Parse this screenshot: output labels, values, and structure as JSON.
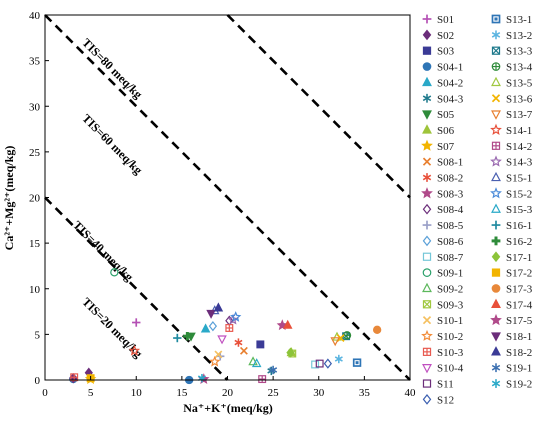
{
  "chart_data": {
    "type": "scatter",
    "xlabel": "Na⁺+K⁺(meq/kg)",
    "ylabel": "Ca²⁺+Mg²⁺(meq/kg)",
    "xlim": [
      0,
      40
    ],
    "ylim": [
      0,
      40
    ],
    "xticks": [
      0,
      5,
      10,
      15,
      20,
      25,
      30,
      35,
      40
    ],
    "yticks": [
      0,
      5,
      10,
      15,
      20,
      25,
      30,
      35,
      40
    ],
    "grid": false,
    "legend_placement": "right",
    "tis_lines": [
      {
        "label": "TIS=20 meq/kg",
        "total": 20
      },
      {
        "label": "TIS=40 meq/kg",
        "total": 40
      },
      {
        "label": "TIS=60 meq/kg",
        "total": 60
      },
      {
        "label": "TIS=80 meq/kg",
        "total": 80
      }
    ],
    "series": [
      {
        "name": "S01",
        "marker": "plus",
        "color": "#b450b4",
        "x": 10.0,
        "y": 6.3
      },
      {
        "name": "S02",
        "marker": "diamond",
        "color": "#6b2d7a",
        "x": 4.8,
        "y": 0.8
      },
      {
        "name": "S03",
        "marker": "square",
        "color": "#3b3b96",
        "x": 23.6,
        "y": 3.9
      },
      {
        "name": "S04-1",
        "marker": "circle",
        "color": "#2e75b6",
        "x": 15.8,
        "y": 0.0
      },
      {
        "name": "S04-2",
        "marker": "triangle",
        "color": "#2aa9c8",
        "x": 17.6,
        "y": 5.6
      },
      {
        "name": "S04-3",
        "marker": "asterisk",
        "color": "#1f7a8c",
        "x": 24.8,
        "y": 1.0
      },
      {
        "name": "S05",
        "marker": "triangle-down",
        "color": "#2e8b3a",
        "x": 16.0,
        "y": 4.8
      },
      {
        "name": "S06",
        "marker": "triangle",
        "color": "#9ec43a",
        "x": 27.0,
        "y": 3.0
      },
      {
        "name": "S07",
        "marker": "star",
        "color": "#f2b400",
        "x": 5.0,
        "y": 0.1
      },
      {
        "name": "S08-1",
        "marker": "x",
        "color": "#e87f2f",
        "x": 21.8,
        "y": 3.2
      },
      {
        "name": "S08-2",
        "marker": "asterisk",
        "color": "#e8503a",
        "x": 21.2,
        "y": 4.1
      },
      {
        "name": "S08-3",
        "marker": "star",
        "color": "#b04a8a",
        "x": 26.0,
        "y": 6.0
      },
      {
        "name": "S08-4",
        "marker": "diamond-open",
        "color": "#6b2d7a",
        "x": 20.2,
        "y": 6.5
      },
      {
        "name": "S08-5",
        "marker": "plus",
        "color": "#9aa0c8",
        "x": 19.2,
        "y": 2.6
      },
      {
        "name": "S08-6",
        "marker": "diamond-open",
        "color": "#5aa0d8",
        "x": 18.4,
        "y": 5.9
      },
      {
        "name": "S08-7",
        "marker": "square-open",
        "color": "#74c7d8",
        "x": 29.6,
        "y": 1.7
      },
      {
        "name": "S09-1",
        "marker": "circle-open",
        "color": "#2aa06a",
        "x": 7.6,
        "y": 11.8
      },
      {
        "name": "S09-2",
        "marker": "triangle-open",
        "color": "#5cb85c",
        "x": 22.8,
        "y": 2.0
      },
      {
        "name": "S09-3",
        "marker": "boxx-open",
        "color": "#a0c840",
        "x": 27.1,
        "y": 2.9
      },
      {
        "name": "S10-1",
        "marker": "x",
        "color": "#f5c060",
        "x": 19.0,
        "y": 2.8
      },
      {
        "name": "S10-2",
        "marker": "star-open",
        "color": "#f28c3a",
        "x": 18.6,
        "y": 2.0
      },
      {
        "name": "S10-3",
        "marker": "boxplus-open",
        "color": "#e85a50",
        "x": 20.2,
        "y": 5.7
      },
      {
        "name": "S10-4",
        "marker": "triangle-down-open",
        "color": "#c050c0",
        "x": 19.4,
        "y": 4.5
      },
      {
        "name": "S11",
        "marker": "square-open",
        "color": "#6b2d7a",
        "x": 30.1,
        "y": 1.8
      },
      {
        "name": "S12",
        "marker": "diamond-open",
        "color": "#3b5fb0",
        "x": 31.0,
        "y": 1.8
      },
      {
        "name": "S13-1",
        "marker": "boxdot-open",
        "color": "#2e75b6",
        "x": 34.2,
        "y": 1.9
      },
      {
        "name": "S13-2",
        "marker": "asterisk-open",
        "color": "#5ab4e0",
        "x": 32.2,
        "y": 2.3
      },
      {
        "name": "S13-3",
        "marker": "boxx-open",
        "color": "#1f7a8c",
        "x": 33.0,
        "y": 4.8
      },
      {
        "name": "S13-4",
        "marker": "circleplus-open",
        "color": "#2e8b3a",
        "x": 33.1,
        "y": 4.9
      },
      {
        "name": "S13-5",
        "marker": "triangle-open",
        "color": "#a0c840",
        "x": 32.0,
        "y": 4.7
      },
      {
        "name": "S13-6",
        "marker": "x",
        "color": "#f2b400",
        "x": 32.4,
        "y": 4.6
      },
      {
        "name": "S13-7",
        "marker": "triangle-down-open",
        "color": "#e87f2f",
        "x": 31.8,
        "y": 4.3
      },
      {
        "name": "S14-1",
        "marker": "star-open",
        "color": "#e8503a",
        "x": 9.8,
        "y": 3.2
      },
      {
        "name": "S14-2",
        "marker": "boxplus-open",
        "color": "#b04a8a",
        "x": 23.8,
        "y": 0.1
      },
      {
        "name": "S14-3",
        "marker": "star-open",
        "color": "#9a6ab0",
        "x": 20.6,
        "y": 6.6
      },
      {
        "name": "S15-1",
        "marker": "triangle-open",
        "color": "#4a5fb0",
        "x": 18.6,
        "y": 7.6
      },
      {
        "name": "S15-2",
        "marker": "star-open",
        "color": "#4a8ad8",
        "x": 20.9,
        "y": 6.9
      },
      {
        "name": "S15-3",
        "marker": "triangle-open",
        "color": "#2aa9c8",
        "x": 23.2,
        "y": 1.8
      },
      {
        "name": "S16-1",
        "marker": "plus",
        "color": "#1f8aa0",
        "x": 14.5,
        "y": 4.6
      },
      {
        "name": "S16-2",
        "marker": "plus-bold",
        "color": "#2e8b3a",
        "x": 15.6,
        "y": 4.8
      },
      {
        "name": "S17-1",
        "marker": "diamond",
        "color": "#8cc43a",
        "x": 26.9,
        "y": 3.0
      },
      {
        "name": "S17-2",
        "marker": "square",
        "color": "#f2b400",
        "x": 5.0,
        "y": 0.2
      },
      {
        "name": "S17-3",
        "marker": "circle",
        "color": "#e8883a",
        "x": 36.4,
        "y": 5.5
      },
      {
        "name": "S17-4",
        "marker": "triangle",
        "color": "#e8503a",
        "x": 26.6,
        "y": 6.0
      },
      {
        "name": "S17-5",
        "marker": "star",
        "color": "#b04a8a",
        "x": 17.4,
        "y": 0.1
      },
      {
        "name": "S18-1",
        "marker": "triangle-down",
        "color": "#6b2d7a",
        "x": 18.2,
        "y": 7.3
      },
      {
        "name": "S18-2",
        "marker": "triangle",
        "color": "#3b3b96",
        "x": 19.0,
        "y": 7.9
      },
      {
        "name": "S19-1",
        "marker": "asterisk",
        "color": "#3b6fb0",
        "x": 25.0,
        "y": 1.1
      },
      {
        "name": "S19-2",
        "marker": "asterisk",
        "color": "#2aa9c8",
        "x": 17.2,
        "y": 0.2
      },
      {
        "name": "S04-1",
        "marker": "circle",
        "color": "#2e75b6",
        "x": 3.1,
        "y": 0.1,
        "legend": false
      },
      {
        "name": "S02",
        "marker": "diamond",
        "color": "#6b2d7a",
        "x": 3.1,
        "y": 0.2,
        "legend": false
      },
      {
        "name": "S10-3",
        "marker": "boxplus-open",
        "color": "#e85a50",
        "x": 3.2,
        "y": 0.3,
        "legend": false
      }
    ]
  }
}
